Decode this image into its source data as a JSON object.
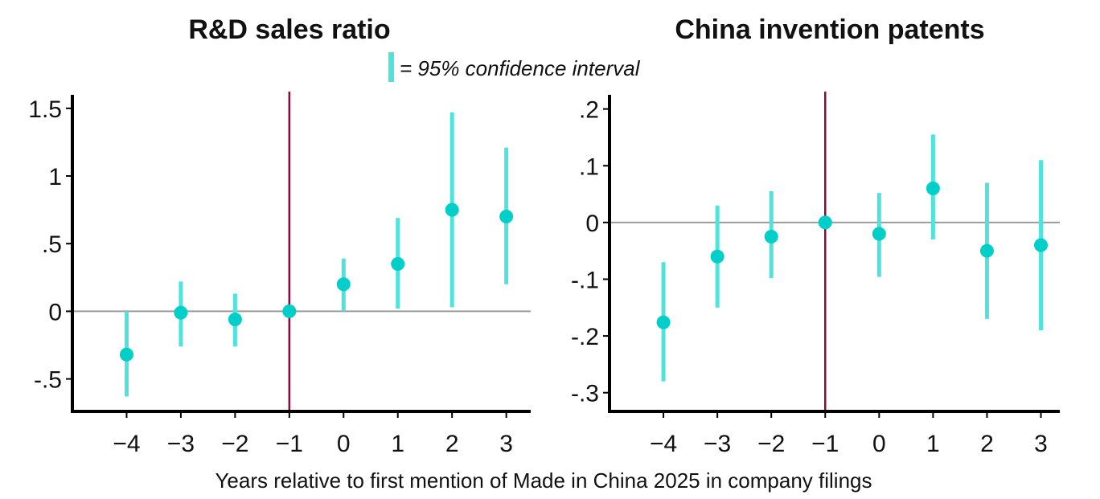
{
  "legend": {
    "label": "= 95% confidence interval",
    "color": "#4fe3dc"
  },
  "xlabel": "Years relative to first mention of Made in China 2025 in company filings",
  "colors": {
    "point": "#00cec9",
    "ci": "#4fe3dc",
    "event_line": "#8b0a3a",
    "zero_line": "#9a9a9a",
    "axis": "#000000"
  },
  "chart_data": [
    {
      "type": "scatter",
      "title": "R&D sales ratio",
      "x": [
        -4,
        -3,
        -2,
        -1,
        0,
        1,
        2,
        3
      ],
      "x_tick_labels": [
        "−4",
        "−3",
        "−2",
        "−1",
        "0",
        "1",
        "2",
        "3"
      ],
      "y": [
        -0.32,
        -0.01,
        -0.06,
        0.0,
        0.2,
        0.35,
        0.75,
        0.7
      ],
      "ci_low": [
        -0.63,
        -0.26,
        -0.26,
        0.0,
        0.0,
        0.02,
        0.03,
        0.2
      ],
      "ci_high": [
        0.0,
        0.22,
        0.13,
        0.0,
        0.39,
        0.69,
        1.47,
        1.21
      ],
      "y_ticks": [
        -0.5,
        0,
        0.5,
        1,
        1.5
      ],
      "y_tick_labels": [
        "-.5",
        "0",
        ".5",
        "1",
        "1.5"
      ],
      "xlim": [
        -5,
        3.45
      ],
      "ylim": [
        -0.74,
        1.6
      ],
      "event_x": -1,
      "zero_line": 0
    },
    {
      "type": "scatter",
      "title": "China invention patents",
      "x": [
        -4,
        -3,
        -2,
        -1,
        0,
        1,
        2,
        3
      ],
      "x_tick_labels": [
        "−4",
        "−3",
        "−2",
        "−1",
        "0",
        "1",
        "2",
        "3"
      ],
      "y": [
        -0.176,
        -0.06,
        -0.025,
        0.0,
        -0.02,
        0.06,
        -0.05,
        -0.04
      ],
      "ci_low": [
        -0.28,
        -0.15,
        -0.098,
        0.0,
        -0.096,
        -0.03,
        -0.17,
        -0.19
      ],
      "ci_high": [
        -0.07,
        0.03,
        0.055,
        0.0,
        0.052,
        0.155,
        0.07,
        0.11
      ],
      "y_ticks": [
        -0.3,
        -0.2,
        -0.1,
        0,
        0.1,
        0.2
      ],
      "y_tick_labels": [
        "-.3",
        "-.2",
        "-.1",
        "0",
        ".1",
        ".2"
      ],
      "xlim": [
        -5,
        3.35
      ],
      "ylim": [
        -0.333,
        0.225
      ],
      "event_x": -1,
      "zero_line": 0
    }
  ]
}
